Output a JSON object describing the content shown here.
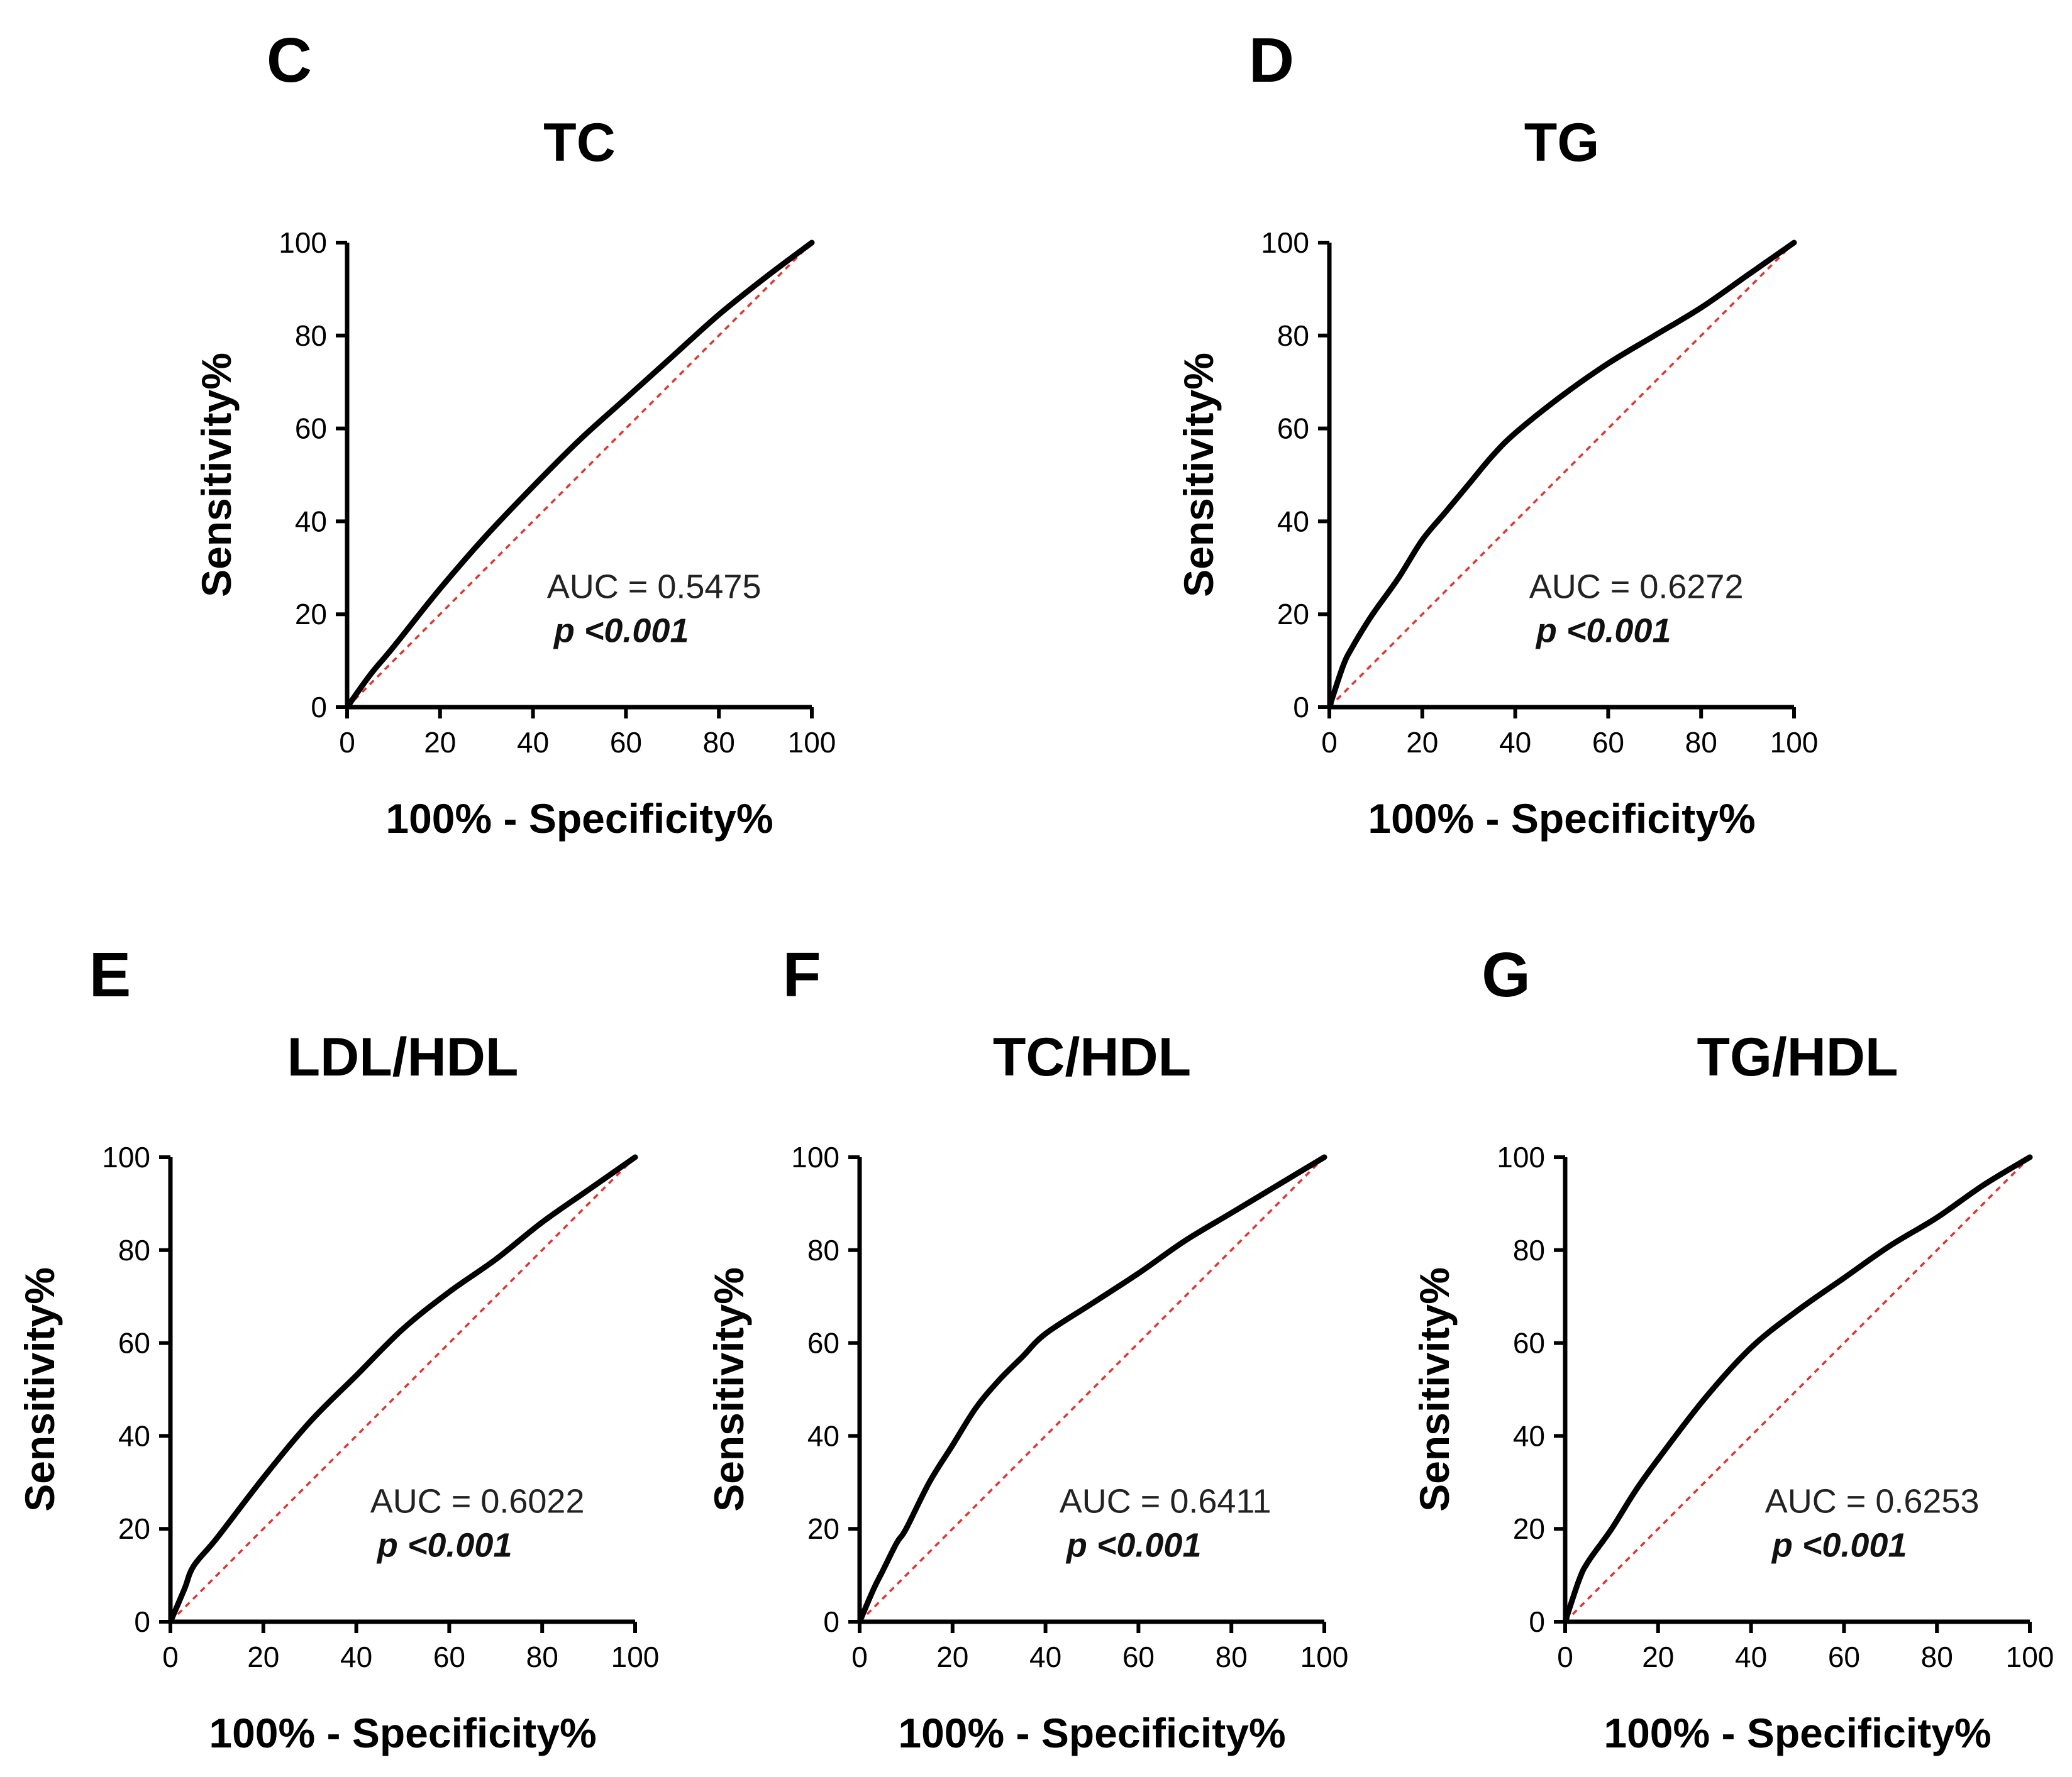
{
  "chart_data": [
    {
      "panel": "C",
      "type": "line",
      "title": "TC",
      "xlabel": "100% - Specificity%",
      "ylabel": "Sensitivity%",
      "xlim": [
        0,
        100
      ],
      "ylim": [
        0,
        100
      ],
      "xticks": [
        "0",
        "20",
        "40",
        "60",
        "80",
        "100"
      ],
      "yticks": [
        "0",
        "20",
        "40",
        "60",
        "80",
        "100"
      ],
      "auc_text": "AUC = 0.5475",
      "p_text": "p <0.001",
      "series": [
        {
          "name": "ROC",
          "x": [
            0,
            5,
            10,
            20,
            30,
            40,
            50,
            60,
            70,
            80,
            90,
            100
          ],
          "y": [
            0,
            7,
            13,
            25.5,
            37,
            47.5,
            57.5,
            66.5,
            75.5,
            84.5,
            92.5,
            100
          ]
        },
        {
          "name": "Reference",
          "x": [
            0,
            100
          ],
          "y": [
            0,
            100
          ]
        }
      ]
    },
    {
      "panel": "D",
      "type": "line",
      "title": "TG",
      "xlabel": "100% - Specificity%",
      "ylabel": "Sensitivity%",
      "xlim": [
        0,
        100
      ],
      "ylim": [
        0,
        100
      ],
      "xticks": [
        "0",
        "20",
        "40",
        "60",
        "80",
        "100"
      ],
      "yticks": [
        "0",
        "20",
        "40",
        "60",
        "80",
        "100"
      ],
      "auc_text": "AUC = 0.6272",
      "p_text": "p <0.001",
      "series": [
        {
          "name": "ROC",
          "x": [
            0,
            3,
            5,
            8,
            10,
            15,
            20,
            25,
            30,
            35,
            40,
            50,
            60,
            70,
            80,
            90,
            100
          ],
          "y": [
            0,
            9,
            13,
            18,
            21,
            28,
            36,
            42,
            48,
            54,
            59,
            67,
            74,
            80,
            86,
            93,
            100
          ]
        },
        {
          "name": "Reference",
          "x": [
            0,
            100
          ],
          "y": [
            0,
            100
          ]
        }
      ]
    },
    {
      "panel": "E",
      "type": "line",
      "title": "LDL/HDL",
      "xlabel": "100% - Specificity%",
      "ylabel": "Sensitivity%",
      "xlim": [
        0,
        100
      ],
      "ylim": [
        0,
        100
      ],
      "xticks": [
        "0",
        "20",
        "40",
        "60",
        "80",
        "100"
      ],
      "yticks": [
        "0",
        "20",
        "40",
        "60",
        "80",
        "100"
      ],
      "auc_text": "AUC = 0.6022",
      "p_text": "p <0.001",
      "series": [
        {
          "name": "ROC",
          "x": [
            0,
            3,
            5,
            10,
            20,
            30,
            40,
            50,
            60,
            70,
            80,
            90,
            100
          ],
          "y": [
            0,
            7,
            12,
            18,
            31,
            43,
            53,
            63,
            71,
            78,
            86,
            93,
            100
          ]
        },
        {
          "name": "Reference",
          "x": [
            0,
            100
          ],
          "y": [
            0,
            100
          ]
        }
      ]
    },
    {
      "panel": "F",
      "type": "line",
      "title": "TC/HDL",
      "xlabel": "100% - Specificity%",
      "ylabel": "Sensitivity%",
      "xlim": [
        0,
        100
      ],
      "ylim": [
        0,
        100
      ],
      "xticks": [
        "0",
        "20",
        "40",
        "60",
        "80",
        "100"
      ],
      "yticks": [
        "0",
        "20",
        "40",
        "60",
        "80",
        "100"
      ],
      "auc_text": "AUC = 0.6411",
      "p_text": "p <0.001",
      "series": [
        {
          "name": "ROC",
          "x": [
            0,
            3,
            5,
            8,
            10,
            15,
            20,
            25,
            30,
            35,
            40,
            50,
            60,
            70,
            80,
            90,
            100
          ],
          "y": [
            0,
            7,
            11,
            17,
            20,
            30,
            38,
            46,
            52,
            57,
            62,
            68.5,
            75,
            82,
            88,
            94,
            100
          ]
        },
        {
          "name": "Reference",
          "x": [
            0,
            100
          ],
          "y": [
            0,
            100
          ]
        }
      ]
    },
    {
      "panel": "G",
      "type": "line",
      "title": "TG/HDL",
      "xlabel": "100% - Specificity%",
      "ylabel": "Sensitivity%",
      "xlim": [
        0,
        100
      ],
      "ylim": [
        0,
        100
      ],
      "xticks": [
        "0",
        "20",
        "40",
        "60",
        "80",
        "100"
      ],
      "yticks": [
        "0",
        "20",
        "40",
        "60",
        "80",
        "100"
      ],
      "auc_text": "AUC = 0.6253",
      "p_text": "p <0.001",
      "series": [
        {
          "name": "ROC",
          "x": [
            0,
            3,
            5,
            10,
            15,
            20,
            30,
            40,
            50,
            60,
            70,
            80,
            90,
            100
          ],
          "y": [
            0,
            9,
            13,
            20,
            28,
            35,
            48,
            59,
            67,
            74,
            81,
            87,
            94,
            100
          ]
        },
        {
          "name": "Reference",
          "x": [
            0,
            100
          ],
          "y": [
            0,
            100
          ]
        }
      ]
    }
  ]
}
